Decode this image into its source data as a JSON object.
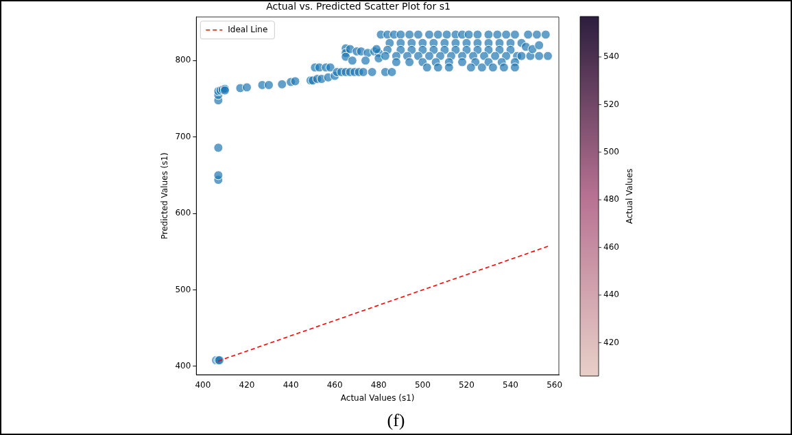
{
  "chart_data": {
    "type": "scatter",
    "title": "Actual vs. Predicted Scatter Plot for s1",
    "xlabel": "Actual Values (s1)",
    "ylabel": "Predicted Values (s1)",
    "clabel": "Actual Values",
    "clim": [
      406,
      557
    ],
    "cticks": [
      420,
      440,
      460,
      480,
      500,
      520,
      540
    ],
    "xlim": [
      397,
      562
    ],
    "ylim": [
      389,
      857
    ],
    "xticks": [
      400,
      420,
      440,
      460,
      480,
      500,
      520,
      540,
      560
    ],
    "yticks": [
      400,
      500,
      600,
      700,
      800
    ],
    "legend": "top left",
    "grid": false,
    "marker": "circle",
    "annotations": [
      "(f)"
    ],
    "series": [
      {
        "type": "scatter",
        "color": "#1f77b4",
        "x": [
          406,
          407,
          407.5,
          407,
          407,
          407,
          407,
          407,
          407,
          408,
          409,
          410,
          410,
          417,
          420,
          427,
          430,
          436,
          440,
          442,
          449,
          450,
          452,
          454,
          451,
          453,
          456,
          458,
          457,
          460,
          461,
          463,
          465,
          467,
          469,
          471,
          473,
          477,
          483,
          486,
          465,
          465,
          465,
          467,
          470,
          472,
          475,
          478,
          480,
          479,
          468,
          474,
          480,
          481,
          484,
          487,
          490,
          494,
          498,
          503,
          507,
          511,
          515,
          518,
          521,
          525,
          530,
          534,
          538,
          542,
          548,
          552,
          556,
          485,
          490,
          495,
          500,
          505,
          510,
          515,
          520,
          525,
          530,
          535,
          540,
          545,
          484,
          490,
          495,
          500,
          505,
          510,
          515,
          520,
          525,
          530,
          535,
          540,
          483,
          488,
          493,
          498,
          503,
          508,
          513,
          518,
          523,
          528,
          533,
          538,
          543,
          488,
          494,
          500,
          506,
          512,
          518,
          524,
          530,
          536,
          542,
          502,
          507,
          512,
          522,
          527,
          532,
          537,
          542,
          545,
          549,
          553,
          557,
          547,
          550,
          553
        ],
        "values": [
          408,
          408,
          408,
          644,
          650,
          686,
          748,
          755,
          760,
          761,
          762,
          763,
          761,
          764,
          765,
          768,
          768,
          769,
          772,
          773,
          774,
          774,
          776,
          776,
          791,
          791,
          791,
          791,
          778,
          780,
          785,
          785,
          785,
          785,
          785,
          785,
          785,
          785,
          785,
          785,
          816,
          810,
          805,
          815,
          812,
          812,
          810,
          812,
          810,
          815,
          800,
          800,
          803,
          834,
          834,
          834,
          834,
          834,
          834,
          834,
          834,
          834,
          834,
          834,
          834,
          834,
          834,
          834,
          834,
          834,
          834,
          834,
          834,
          823,
          823,
          823,
          823,
          823,
          823,
          823,
          823,
          823,
          823,
          823,
          823,
          823,
          814,
          814,
          814,
          814,
          814,
          814,
          814,
          814,
          814,
          814,
          814,
          814,
          806,
          806,
          806,
          806,
          806,
          806,
          806,
          806,
          806,
          806,
          806,
          806,
          806,
          798,
          798,
          798,
          798,
          798,
          798,
          798,
          798,
          798,
          798,
          791,
          791,
          791,
          791,
          791,
          791,
          791,
          791,
          806,
          806,
          806,
          806,
          818,
          815,
          820
        ]
      },
      {
        "type": "line",
        "name": "Ideal Line",
        "color": "#ff0000",
        "line_style": "dashed",
        "marker": "none",
        "x": [
          407,
          557
        ],
        "values": [
          407,
          557
        ]
      }
    ]
  }
}
